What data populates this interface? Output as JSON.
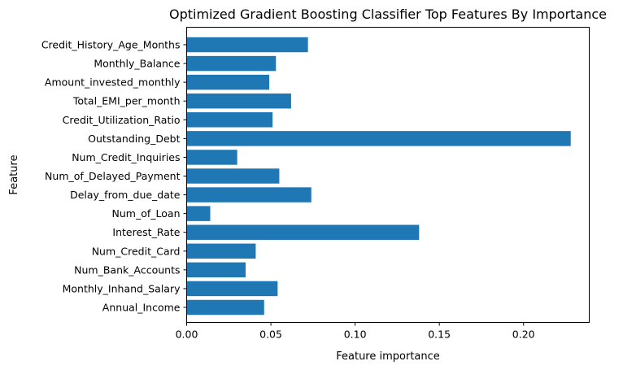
{
  "chart_data": {
    "type": "bar",
    "orientation": "horizontal",
    "title": "Optimized Gradient Boosting Classifier Top Features By Importance",
    "xlabel": "Feature importance",
    "ylabel": "Feature",
    "xlim": [
      0,
      0.239
    ],
    "xticks": [
      0.0,
      0.05,
      0.1,
      0.15,
      0.2
    ],
    "xtick_labels": [
      "0.00",
      "0.05",
      "0.10",
      "0.15",
      "0.20"
    ],
    "grid": false,
    "legend": "none",
    "bar_color": "#1f77b4",
    "categories": [
      "Annual_Income",
      "Monthly_Inhand_Salary",
      "Num_Bank_Accounts",
      "Num_Credit_Card",
      "Interest_Rate",
      "Num_of_Loan",
      "Delay_from_due_date",
      "Num_of_Delayed_Payment",
      "Num_Credit_Inquiries",
      "Outstanding_Debt",
      "Credit_Utilization_Ratio",
      "Total_EMI_per_month",
      "Amount_invested_monthly",
      "Monthly_Balance",
      "Credit_History_Age_Months"
    ],
    "values": [
      0.046,
      0.054,
      0.035,
      0.041,
      0.138,
      0.014,
      0.074,
      0.055,
      0.03,
      0.228,
      0.051,
      0.062,
      0.049,
      0.053,
      0.072
    ]
  }
}
